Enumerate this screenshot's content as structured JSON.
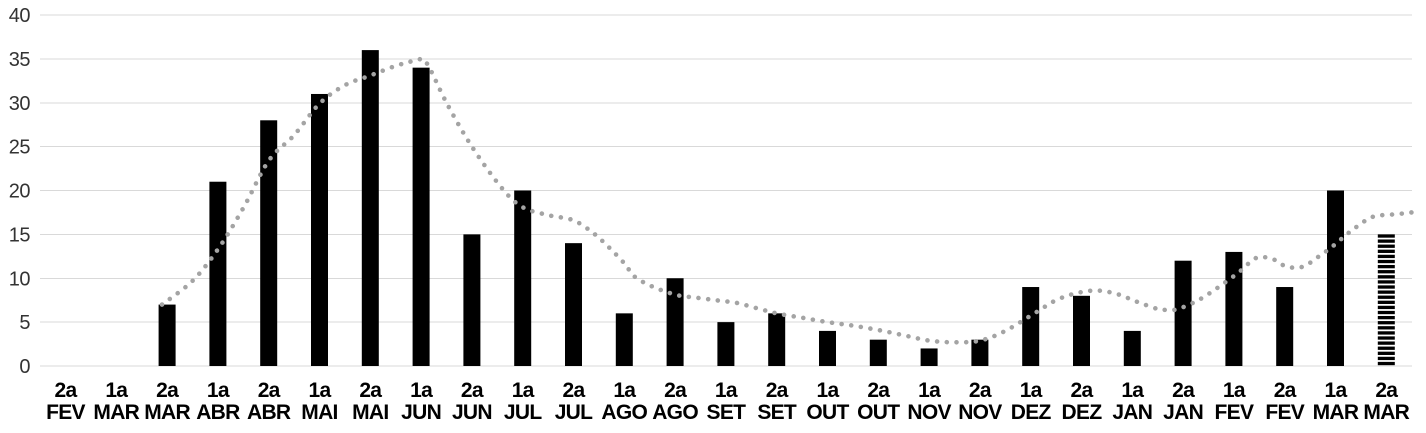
{
  "chart_data": {
    "type": "bar",
    "title": "",
    "legend": "none",
    "grid": true,
    "ylim": [
      0,
      40
    ],
    "yticks": [
      0,
      5,
      10,
      15,
      20,
      25,
      30,
      35,
      40
    ],
    "categories": [
      {
        "period": "2a",
        "month": "FEV"
      },
      {
        "period": "1a",
        "month": "MAR"
      },
      {
        "period": "2a",
        "month": "MAR"
      },
      {
        "period": "1a",
        "month": "ABR"
      },
      {
        "period": "2a",
        "month": "ABR"
      },
      {
        "period": "1a",
        "month": "MAI"
      },
      {
        "period": "2a",
        "month": "MAI"
      },
      {
        "period": "1a",
        "month": "JUN"
      },
      {
        "period": "2a",
        "month": "JUN"
      },
      {
        "period": "1a",
        "month": "JUL"
      },
      {
        "period": "2a",
        "month": "JUL"
      },
      {
        "period": "1a",
        "month": "AGO"
      },
      {
        "period": "2a",
        "month": "AGO"
      },
      {
        "period": "1a",
        "month": "SET"
      },
      {
        "period": "2a",
        "month": "SET"
      },
      {
        "period": "1a",
        "month": "OUT"
      },
      {
        "period": "2a",
        "month": "OUT"
      },
      {
        "period": "1a",
        "month": "NOV"
      },
      {
        "period": "2a",
        "month": "NOV"
      },
      {
        "period": "1a",
        "month": "DEZ"
      },
      {
        "period": "2a",
        "month": "DEZ"
      },
      {
        "period": "1a",
        "month": "JAN"
      },
      {
        "period": "2a",
        "month": "JAN"
      },
      {
        "period": "1a",
        "month": "FEV"
      },
      {
        "period": "2a",
        "month": "FEV"
      },
      {
        "period": "1a",
        "month": "MAR"
      },
      {
        "period": "2a",
        "month": "MAR"
      }
    ],
    "values": [
      0,
      0,
      7,
      21,
      28,
      31,
      36,
      34,
      15,
      20,
      14,
      6,
      10,
      5,
      6,
      4,
      3,
      2,
      3,
      9,
      8,
      4,
      12,
      13,
      9,
      20,
      15
    ],
    "striped_bar_index": 26,
    "trend_line": {
      "style": "dotted",
      "points": [
        [
          1.9,
          7.0
        ],
        [
          2.5,
          9.7
        ],
        [
          3.0,
          13.3
        ],
        [
          3.5,
          18.0
        ],
        [
          4.0,
          23.4
        ],
        [
          4.5,
          26.3
        ],
        [
          5.0,
          29.9
        ],
        [
          5.5,
          32.0
        ],
        [
          6.0,
          33.1
        ],
        [
          6.5,
          34.2
        ],
        [
          6.9,
          34.8
        ],
        [
          7.1,
          34.6
        ],
        [
          7.5,
          30.0
        ],
        [
          8.0,
          25.0
        ],
        [
          8.6,
          20.2
        ],
        [
          9.0,
          18.1
        ],
        [
          9.5,
          17.2
        ],
        [
          10.0,
          16.6
        ],
        [
          10.4,
          15.1
        ],
        [
          10.7,
          13.5
        ],
        [
          11.0,
          11.7
        ],
        [
          11.2,
          10.2
        ],
        [
          11.5,
          9.2
        ],
        [
          11.8,
          8.5
        ],
        [
          12.1,
          8.0
        ],
        [
          12.4,
          7.8
        ],
        [
          12.8,
          7.5
        ],
        [
          13.2,
          7.2
        ],
        [
          13.6,
          6.6
        ],
        [
          14.0,
          6.0
        ],
        [
          14.5,
          5.5
        ],
        [
          15.0,
          5.0
        ],
        [
          15.5,
          4.6
        ],
        [
          16.0,
          4.1
        ],
        [
          16.5,
          3.5
        ],
        [
          17.0,
          2.9
        ],
        [
          17.5,
          2.7
        ],
        [
          18.0,
          2.9
        ],
        [
          18.5,
          4.0
        ],
        [
          19.1,
          6.1
        ],
        [
          19.5,
          7.5
        ],
        [
          19.9,
          8.3
        ],
        [
          20.3,
          8.6
        ],
        [
          20.7,
          8.2
        ],
        [
          21.1,
          7.3
        ],
        [
          21.5,
          6.5
        ],
        [
          21.7,
          6.4
        ],
        [
          21.9,
          6.5
        ],
        [
          22.3,
          7.5
        ],
        [
          22.7,
          9.0
        ],
        [
          23.1,
          10.7
        ],
        [
          23.4,
          12.2
        ],
        [
          23.6,
          12.4
        ],
        [
          23.8,
          12.1
        ],
        [
          24.0,
          11.4
        ],
        [
          24.2,
          11.2
        ],
        [
          24.4,
          11.4
        ],
        [
          24.6,
          12.2
        ],
        [
          24.8,
          13.0
        ],
        [
          25.0,
          13.9
        ],
        [
          25.2,
          14.9
        ],
        [
          25.4,
          15.8
        ],
        [
          25.6,
          16.6
        ],
        [
          25.8,
          17.1
        ],
        [
          26.2,
          17.3
        ],
        [
          26.5,
          17.5
        ]
      ]
    },
    "colors": {
      "bar": "#000000",
      "trend": "#a4a4a4",
      "gridline": "#d9d9d9",
      "y_label": "#333333",
      "x_label": "#000000",
      "background": "#ffffff"
    }
  }
}
